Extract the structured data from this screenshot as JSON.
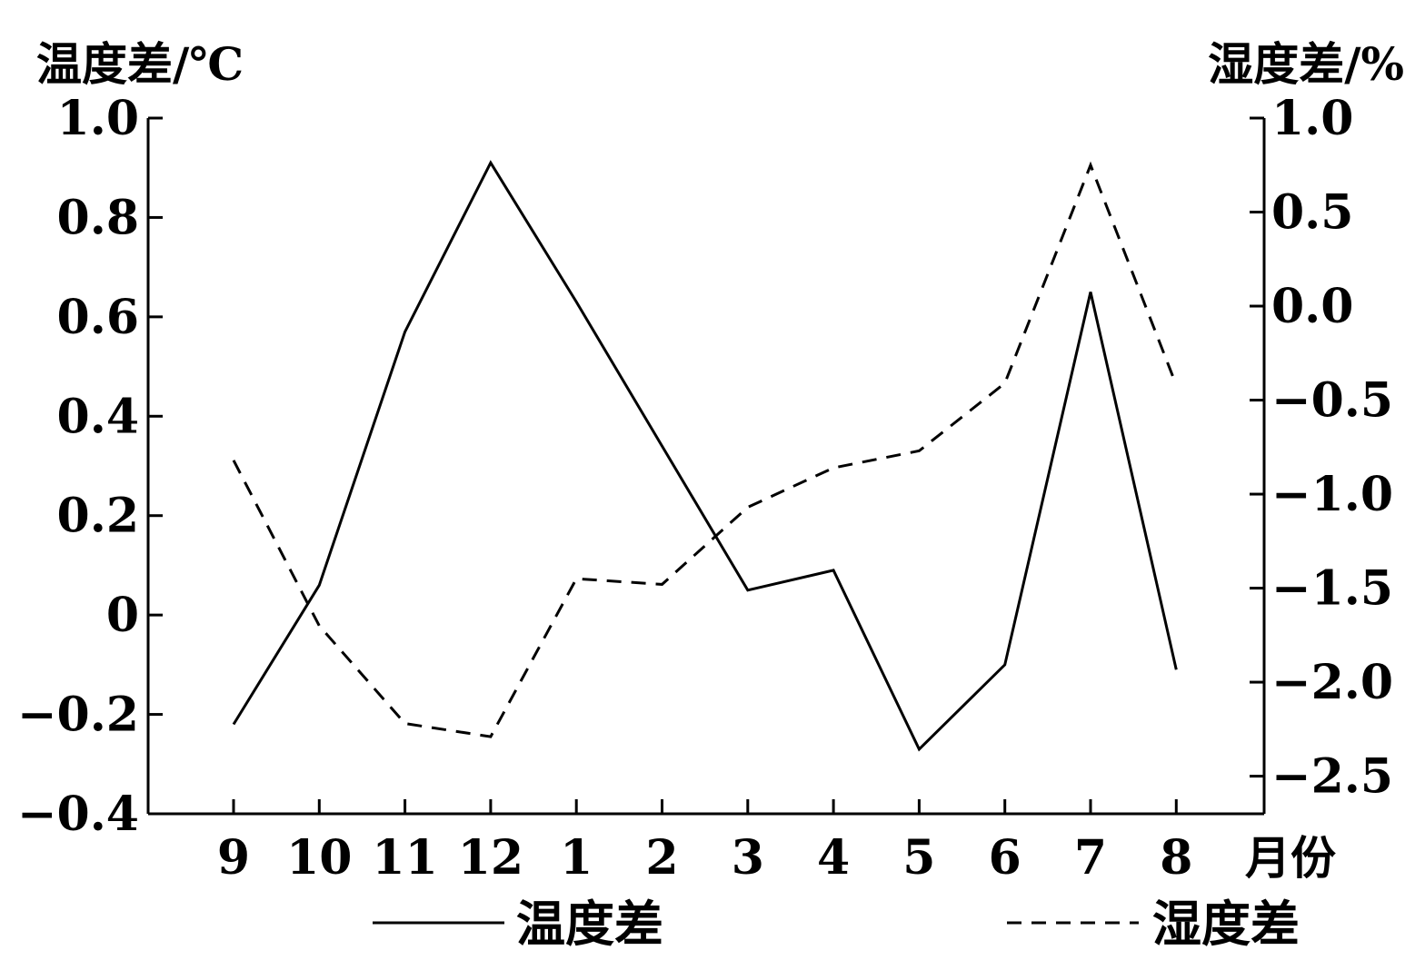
{
  "chart_data": {
    "type": "line",
    "categories": [
      "9",
      "10",
      "11",
      "12",
      "1",
      "2",
      "3",
      "4",
      "5",
      "6",
      "7",
      "8"
    ],
    "xlabel": "月份",
    "y_left": {
      "label": "温度差/℃",
      "ylim": [
        -0.4,
        1.0
      ],
      "ticks": [
        "1.0",
        "0.8",
        "0.6",
        "0.4",
        "0.2",
        "0",
        "−0.2",
        "−0.4"
      ],
      "tick_values": [
        1.0,
        0.8,
        0.6,
        0.4,
        0.2,
        0,
        -0.2,
        -0.4
      ]
    },
    "y_right": {
      "label": "湿度差/%",
      "ylim": [
        -2.7,
        1.0
      ],
      "ticks": [
        "1.0",
        "0.5",
        "0.0",
        "−0.5",
        "−1.0",
        "−1.5",
        "−2.0",
        "−2.5"
      ],
      "tick_values": [
        1.0,
        0.5,
        0.0,
        -0.5,
        -1.0,
        -1.5,
        -2.0,
        -2.5
      ]
    },
    "series": [
      {
        "name": "温度差",
        "axis": "left",
        "style": "solid",
        "values": [
          -0.22,
          0.06,
          0.57,
          0.91,
          0.63,
          0.34,
          0.05,
          0.09,
          -0.27,
          -0.1,
          0.65,
          -0.11
        ]
      },
      {
        "name": "湿度差",
        "axis": "right",
        "style": "dashed",
        "values": [
          -0.82,
          -1.7,
          -2.22,
          -2.29,
          -1.45,
          -1.48,
          -1.07,
          -0.86,
          -0.77,
          -0.41,
          0.75,
          -0.42
        ]
      }
    ],
    "grid": false,
    "legend": "bottom"
  }
}
